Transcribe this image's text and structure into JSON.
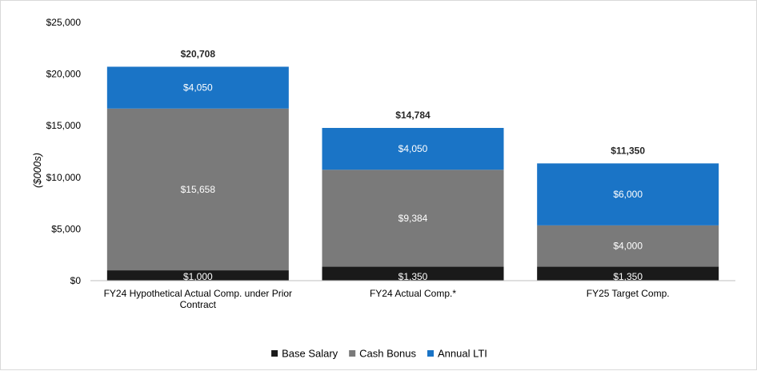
{
  "chart_data": {
    "type": "bar",
    "stacked": true,
    "title": "",
    "xlabel": "",
    "ylabel": "($000s)",
    "ylim": [
      0,
      25000
    ],
    "yticks": [
      0,
      5000,
      10000,
      15000,
      20000,
      25000
    ],
    "ytick_labels": [
      "$0",
      "$5,000",
      "$10,000",
      "$15,000",
      "$20,000",
      "$25,000"
    ],
    "grid": false,
    "legend_position": "bottom-center",
    "categories": [
      [
        "FY24 Hypothetical Actual Comp. under Prior",
        "Contract"
      ],
      [
        "FY24 Actual Comp.*"
      ],
      [
        "FY25 Target Comp."
      ]
    ],
    "series": [
      {
        "name": "Base Salary",
        "color": "#1a1a1a",
        "values": [
          1000,
          1350,
          1350
        ],
        "labels": [
          "$1,000",
          "$1,350",
          "$1,350"
        ]
      },
      {
        "name": "Cash Bonus",
        "color": "#7a7a7a",
        "values": [
          15658,
          9384,
          4000
        ],
        "labels": [
          "$15,658",
          "$9,384",
          "$4,000"
        ]
      },
      {
        "name": "Annual LTI",
        "color": "#1a74c6",
        "values": [
          4050,
          4050,
          6000
        ],
        "labels": [
          "$4,050",
          "$4,050",
          "$6,000"
        ]
      }
    ],
    "totals": [
      20708,
      14784,
      11350
    ],
    "total_labels": [
      "$20,708",
      "$14,784",
      "$11,350"
    ]
  }
}
